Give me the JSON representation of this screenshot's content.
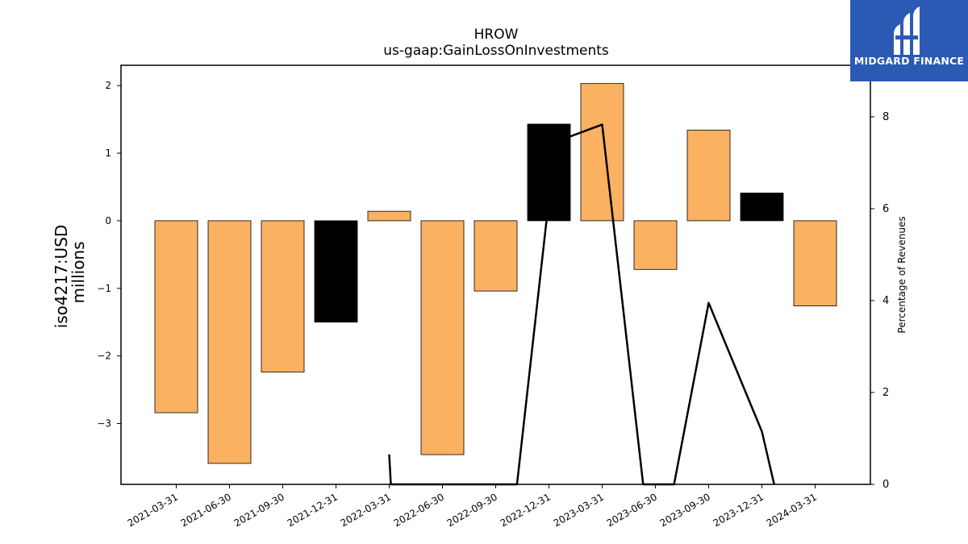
{
  "chart_data": {
    "type": "bar",
    "title": "HROW",
    "subtitle": "us-gaap:GainLossOnInvestments",
    "ylabel_line1": "iso4217:USD",
    "ylabel_line2": "millions",
    "y2label": "Percentage of Revenues",
    "categories": [
      "2021-03-31",
      "2021-06-30",
      "2021-09-30",
      "2021-12-31",
      "2022-03-31",
      "2022-06-30",
      "2022-09-30",
      "2022-12-31",
      "2023-03-31",
      "2023-06-30",
      "2023-09-30",
      "2023-12-31",
      "2024-03-31"
    ],
    "values": [
      -2.84,
      -3.59,
      -2.24,
      -1.5,
      0.14,
      -3.46,
      -1.04,
      1.43,
      2.03,
      -0.72,
      1.34,
      0.41,
      -1.26
    ],
    "bar_colors": [
      "#fbb162",
      "#fbb162",
      "#fbb162",
      "#000000",
      "#fbb162",
      "#fbb162",
      "#fbb162",
      "#000000",
      "#fbb162",
      "#fbb162",
      "#fbb162",
      "#000000",
      "#fbb162"
    ],
    "ylim": [
      -3.9,
      2.3
    ],
    "yticks": [
      2,
      1,
      0,
      -1,
      -2,
      -3
    ],
    "line": {
      "x_start": "2022-03-31",
      "points": [
        [
          4,
          0.65
        ],
        [
          4.03,
          0
        ],
        [
          6.4,
          0
        ],
        [
          7.12,
          7.45
        ],
        [
          8.0,
          7.83
        ],
        [
          8.77,
          0
        ],
        [
          9.35,
          0
        ],
        [
          10.0,
          3.95
        ],
        [
          11.0,
          1.15
        ],
        [
          11.23,
          0
        ]
      ],
      "color": "#000000"
    },
    "y2lim": [
      0,
      9.12
    ],
    "y2ticks": [
      0,
      2,
      4,
      6,
      8
    ],
    "grid": false
  },
  "logo": {
    "text": "MIDGARD FINANCE",
    "bg_color": "#2a5ab3"
  }
}
